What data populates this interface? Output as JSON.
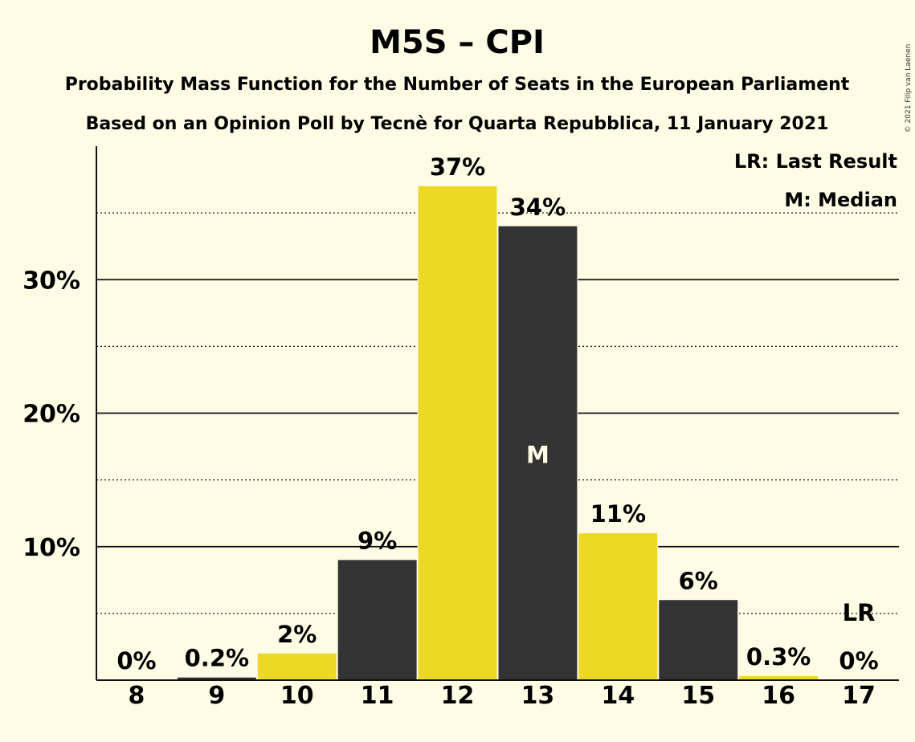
{
  "chart_data": {
    "type": "bar",
    "title": "M5S – CPI",
    "subtitle": "Probability Mass Function for the Number of Seats in the European Parliament",
    "subtitle2": "Based on an Opinion Poll by Tecnè for Quarta Repubblica, 11 January 2021",
    "copyright": "© 2021 Filip van Laenen",
    "categories": [
      "8",
      "9",
      "10",
      "11",
      "12",
      "13",
      "14",
      "15",
      "16",
      "17"
    ],
    "values": [
      0,
      0.2,
      2,
      9,
      37,
      34,
      11,
      6,
      0.3,
      0
    ],
    "data_labels": [
      "0%",
      "0.2%",
      "2%",
      "9%",
      "37%",
      "34%",
      "11%",
      "6%",
      "0.3%",
      "0%"
    ],
    "bar_colors": [
      "#EDD925",
      "#333333",
      "#EDD925",
      "#333333",
      "#EDD925",
      "#333333",
      "#EDD925",
      "#333333",
      "#EDD925",
      "#333333"
    ],
    "ylim": [
      0,
      40
    ],
    "y_ticks": [
      10,
      20,
      30
    ],
    "y_tick_labels": [
      "10%",
      "20%",
      "30%"
    ],
    "minor_gridlines": [
      5,
      15,
      25,
      35
    ],
    "median_seat": "13",
    "median_marker": "M",
    "last_result_seat": "17",
    "last_result_marker": "LR",
    "legend": [
      "LR: Last Result",
      "M: Median"
    ],
    "legend_position": "top-right",
    "grid": true
  }
}
